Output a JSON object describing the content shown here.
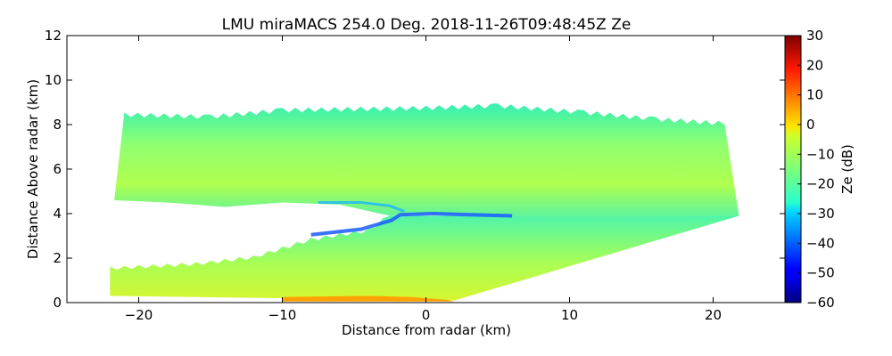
{
  "chart_data": {
    "type": "heatmap",
    "title": "LMU miraMACS 254.0 Deg. 2018-11-26T09:48:45Z  Ze",
    "xlabel": "Distance from radar (km)",
    "ylabel": "Distance Above radar  (km)",
    "xlim": [
      -25,
      25
    ],
    "ylim": [
      0,
      12
    ],
    "xticks": [
      -20,
      -10,
      0,
      10,
      20
    ],
    "yticks": [
      0,
      2,
      4,
      6,
      8,
      10,
      12
    ],
    "grid": false,
    "colorbar": {
      "label": "Ze (dB)",
      "range": [
        -60,
        30
      ],
      "ticks": [
        30,
        20,
        10,
        0,
        -10,
        -20,
        -30,
        -40,
        -50,
        -60
      ],
      "colormap": "jet"
    },
    "echo": {
      "sector_left_edge": [
        [
          -21.7,
          4.6
        ],
        [
          -21.0,
          8.4
        ]
      ],
      "sector_right_edge": [
        [
          21.8,
          3.9
        ],
        [
          20.8,
          8.0
        ]
      ],
      "upper_layer": {
        "top_km": [
          [
            -21.0,
            8.4
          ],
          [
            -15.0,
            8.3
          ],
          [
            -10.0,
            8.6
          ],
          [
            0.0,
            8.7
          ],
          [
            5.0,
            8.8
          ],
          [
            11.0,
            8.5
          ],
          [
            16.0,
            8.2
          ],
          [
            20.8,
            8.0
          ]
        ],
        "bottom_km": [
          [
            -21.7,
            4.6
          ],
          [
            -18.0,
            4.5
          ],
          [
            -14.0,
            4.3
          ],
          [
            -10.0,
            4.5
          ],
          [
            -6.0,
            4.4
          ],
          [
            -2.5,
            3.9
          ],
          [
            0.0,
            4.0
          ],
          [
            4.0,
            3.9
          ],
          [
            10.0,
            3.8
          ],
          [
            21.8,
            3.9
          ]
        ],
        "typical_Ze_dB": -14
      },
      "lower_layer": {
        "top_km": [
          [
            -22.0,
            1.5
          ],
          [
            -16.0,
            1.7
          ],
          [
            -12.0,
            2.0
          ],
          [
            -8.0,
            2.8
          ],
          [
            -4.0,
            3.2
          ],
          [
            -2.5,
            3.9
          ]
        ],
        "bottom_km": [
          [
            -22.0,
            0.3
          ],
          [
            -10.0,
            0.2
          ],
          [
            -2.0,
            0.05
          ],
          [
            2.0,
            0.1
          ]
        ],
        "typical_Ze_dB": -12
      },
      "features": [
        {
          "name": "echo-free notch",
          "x_km": [
            -10.0,
            -2.5
          ],
          "y_km": [
            2.9,
            4.5
          ]
        },
        {
          "name": "weak echo band",
          "Ze_dB": -40,
          "x_km": [
            -8.0,
            6.0
          ],
          "y_km": [
            3.0,
            4.1
          ]
        },
        {
          "name": "strong near-ground echo",
          "Ze_dB": 5,
          "x_km": [
            -10.0,
            2.0
          ],
          "y_km": [
            0.0,
            0.4
          ]
        }
      ]
    }
  }
}
